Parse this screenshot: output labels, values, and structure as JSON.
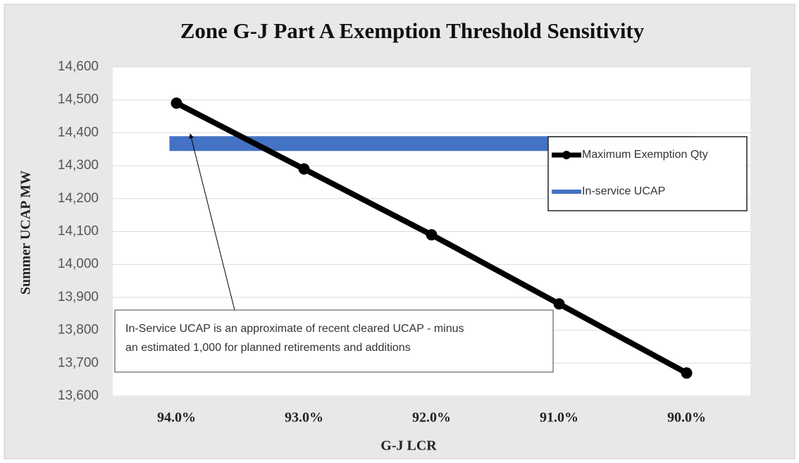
{
  "chart_data": {
    "type": "line",
    "title": "Zone G-J Part A Exemption Threshold Sensitivity",
    "x_label": "G-J LCR",
    "y_label": "Summer UCAP MW",
    "categories": [
      "94.0%",
      "93.0%",
      "92.0%",
      "91.0%",
      "90.0%"
    ],
    "series": [
      {
        "name": "Maximum Exemption Qty",
        "color": "#000000",
        "values": [
          14490,
          14290,
          14090,
          13880,
          13670
        ]
      },
      {
        "name": "In-service UCAP",
        "color": "#4472c4",
        "values": [
          14367,
          14367,
          14367,
          14367,
          14367
        ]
      }
    ],
    "ylim": [
      13600,
      14600
    ],
    "yticks": [
      {
        "value": 13600,
        "label": "13,600"
      },
      {
        "value": 13700,
        "label": "13,700"
      },
      {
        "value": 13800,
        "label": "13,800"
      },
      {
        "value": 13900,
        "label": "13,900"
      },
      {
        "value": 14000,
        "label": "14,000"
      },
      {
        "value": 14100,
        "label": "14,100"
      },
      {
        "value": 14200,
        "label": "14,200"
      },
      {
        "value": 14300,
        "label": "14,300"
      },
      {
        "value": 14400,
        "label": "14,400"
      },
      {
        "value": 14500,
        "label": "14,500"
      },
      {
        "value": 14600,
        "label": "14,600"
      }
    ],
    "grid": true,
    "legend": "right",
    "annotation": [
      "In-Service UCAP is an approximate of recent cleared UCAP - minus",
      "an estimated 1,000 for planned retirements and additions"
    ]
  }
}
